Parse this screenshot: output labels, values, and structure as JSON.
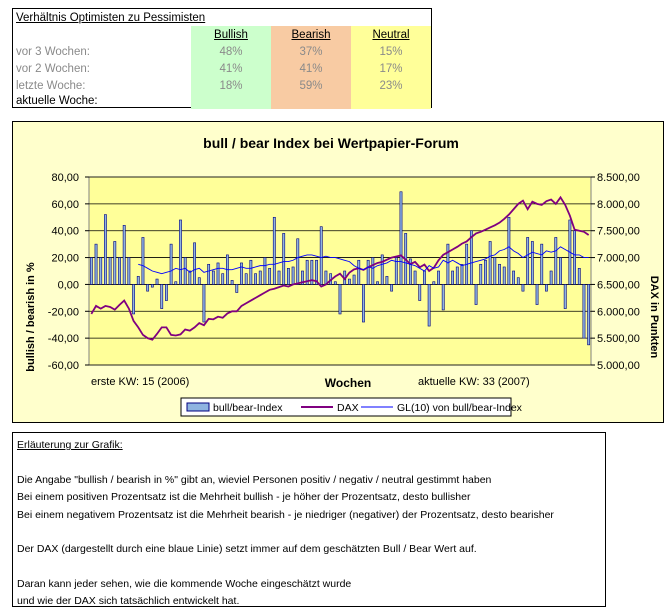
{
  "table": {
    "title": "Verhältnis Optimisten zu Pessimisten",
    "headers": [
      "Bullish",
      "Bearish",
      "Neutral"
    ],
    "rows": [
      {
        "label": "vor 3 Wochen:",
        "bullish": "48%",
        "bearish": "37%",
        "neutral": "15%"
      },
      {
        "label": "vor 2 Wochen:",
        "bullish": "41%",
        "bearish": "41%",
        "neutral": "17%"
      },
      {
        "label": "letzte Woche:",
        "bullish": "18%",
        "bearish": "59%",
        "neutral": "23%"
      },
      {
        "label": "aktuelle Woche:",
        "bullish": "",
        "bearish": "",
        "neutral": ""
      }
    ]
  },
  "colors": {
    "bar_fill": "#8fb4e0",
    "bar_stroke": "#000080",
    "dax_line": "#800080",
    "gl_line": "#0000ff",
    "plot_bg": "#ffff99",
    "frame_bg": "#ffffcc",
    "bullish_bg": "#ccffcc",
    "bearish_bg": "#f8cba3",
    "neutral_bg": "#ffff99"
  },
  "chart_data": {
    "type": "bar",
    "title": "bull / bear Index bei Wertpapier-Forum",
    "xlabel": "Wochen",
    "x_start_label": "erste KW: 15 (2006)",
    "x_end_label": "aktuelle KW: 33 (2007)",
    "ylabel_left": "bullish / bearish in %",
    "ylabel_right": "DAX in Punkten",
    "ylim_left": [
      -60,
      80
    ],
    "ylim_right": [
      5000,
      8500
    ],
    "yticks_left": [
      "80,00",
      "60,00",
      "40,00",
      "20,00",
      "0,00",
      "-20,00",
      "-40,00",
      "-60,00"
    ],
    "yticks_right": [
      "8.500,00",
      "8.000,00",
      "7.500,00",
      "7.000,00",
      "6.500,00",
      "6.000,00",
      "5.500,00",
      "5.000,00"
    ],
    "grid": true,
    "legend_position": "bottom",
    "series": [
      {
        "name": "bull/bear-Index",
        "type": "bar",
        "axis": "left",
        "values": [
          20,
          30,
          20,
          52,
          20,
          32,
          20,
          44,
          20,
          -22,
          6,
          35,
          -5,
          -2,
          4,
          -18,
          -12,
          30,
          2,
          48,
          20,
          10,
          31,
          5,
          -28,
          15,
          10,
          16,
          8,
          22,
          3,
          -6,
          16,
          8,
          18,
          8,
          10,
          20,
          12,
          50,
          10,
          38,
          12,
          13,
          34,
          10,
          18,
          18,
          18,
          43,
          10,
          8,
          2,
          -22,
          10,
          4,
          7,
          18,
          -28,
          18,
          20,
          2,
          22,
          6,
          -5,
          20,
          69,
          38,
          19,
          10,
          -12,
          10,
          -31,
          2,
          10,
          -19,
          30,
          10,
          13,
          15,
          30,
          40,
          -15,
          15,
          18,
          32,
          20,
          15,
          13,
          50,
          10,
          5,
          -5,
          35,
          32,
          -15,
          30,
          -5,
          10,
          35,
          20,
          -18,
          48,
          40,
          12,
          -40,
          -45
        ]
      },
      {
        "name": "DAX",
        "type": "line",
        "axis": "right",
        "values": [
          5950,
          6100,
          6050,
          6100,
          6080,
          6030,
          6120,
          6200,
          6050,
          5820,
          5700,
          5560,
          5500,
          5470,
          5580,
          5700,
          5700,
          5560,
          5550,
          5570,
          5660,
          5640,
          5700,
          5780,
          5740,
          5860,
          5850,
          5900,
          5880,
          5960,
          6000,
          6000,
          6100,
          6150,
          6200,
          6250,
          6300,
          6350,
          6400,
          6420,
          6450,
          6480,
          6460,
          6500,
          6520,
          6540,
          6560,
          6580,
          6560,
          6460,
          6500,
          6580,
          6650,
          6700,
          6600,
          6720,
          6780,
          6800,
          6770,
          6820,
          6860,
          6900,
          6920,
          6960,
          7000,
          7020,
          7040,
          6960,
          6880,
          6920,
          6820,
          6870,
          6750,
          6810,
          6950,
          7050,
          7100,
          7150,
          7200,
          7260,
          7300,
          7380,
          7450,
          7480,
          7520,
          7560,
          7600,
          7650,
          7720,
          7800,
          7900,
          8000,
          8060,
          7900,
          8040,
          8000,
          7980,
          8050,
          8080,
          8000,
          8120,
          7980,
          7780,
          7520,
          7500,
          7480,
          7420
        ]
      },
      {
        "name": "GL(10) von bull/bear-Index",
        "type": "line",
        "axis": "left",
        "values": [
          null,
          null,
          null,
          null,
          null,
          null,
          null,
          null,
          null,
          null,
          15,
          14,
          12,
          10,
          9,
          8,
          9,
          10,
          12,
          11,
          12,
          9,
          11,
          12,
          9,
          10,
          11,
          12,
          12,
          11,
          11,
          12,
          13,
          12,
          12,
          13,
          14,
          14,
          15,
          15,
          16,
          17,
          17,
          18,
          20,
          21,
          22,
          22,
          21,
          20,
          21,
          20,
          20,
          19,
          18,
          17,
          14,
          12,
          11,
          13,
          12,
          14,
          15,
          16,
          18,
          17,
          17,
          16,
          15,
          14,
          12,
          10,
          14,
          12,
          13,
          18,
          16,
          18,
          16,
          14,
          15,
          16,
          17,
          18,
          19,
          21,
          22,
          25,
          26,
          28,
          25,
          23,
          20,
          22,
          24,
          23,
          22,
          25,
          24,
          25,
          28,
          26,
          24,
          22,
          22,
          20,
          20
        ]
      }
    ]
  },
  "explanation": {
    "heading": "Erläuterung zur Grafik:",
    "lines": [
      "Die Angabe \"bullish / bearish in %\" gibt an, wieviel Personen positiv / negativ / neutral gestimmt haben",
      "Bei einem positiven Prozentsatz ist die Mehrheit bullish - je höher der Prozentsatz, desto bullisher",
      "Bei einem negativem Prozentsatz ist die Mehrheit bearish - je niedriger (negativer) der Prozentsatz, desto bearisher",
      "Der DAX (dargestellt durch eine blaue Linie) setzt immer auf dem geschätzten Bull / Bear Wert auf.",
      "Daran kann jeder sehen, wie die kommende Woche eingeschätzt wurde",
      "und wie der DAX sich tatsächlich entwickelt hat."
    ]
  }
}
